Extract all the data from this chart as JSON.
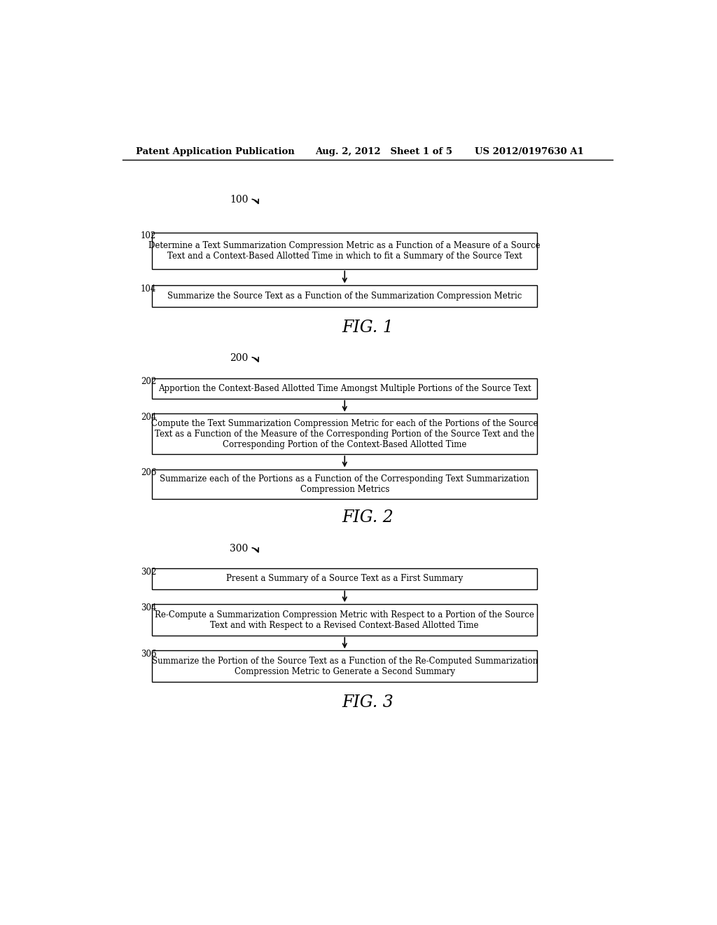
{
  "bg_color": "#ffffff",
  "header_left": "Patent Application Publication",
  "header_mid": "Aug. 2, 2012   Sheet 1 of 5",
  "header_right": "US 2012/0197630 A1",
  "fig1_label": "100",
  "fig1_caption": "FIG. 1",
  "fig1_steps": [
    {
      "id": "102",
      "lines": [
        "Determine a Text Summarization Compression Metric as a Function of a Measure of a Source",
        "Text and a Context-Based Allotted Time in which to fit a Summary of the Source Text"
      ]
    },
    {
      "id": "104",
      "lines": [
        "Summarize the Source Text as a Function of the Summarization Compression Metric"
      ]
    }
  ],
  "fig2_label": "200",
  "fig2_caption": "FIG. 2",
  "fig2_steps": [
    {
      "id": "202",
      "lines": [
        "Apportion the Context-Based Allotted Time Amongst Multiple Portions of the Source Text"
      ]
    },
    {
      "id": "204",
      "lines": [
        "Compute the Text Summarization Compression Metric for each of the Portions of the Source",
        "Text as a Function of the Measure of the Corresponding Portion of the Source Text and the",
        "Corresponding Portion of the Context-Based Allotted Time"
      ]
    },
    {
      "id": "206",
      "lines": [
        "Summarize each of the Portions as a Function of the Corresponding Text Summarization",
        "Compression Metrics"
      ]
    }
  ],
  "fig3_label": "300",
  "fig3_caption": "FIG. 3",
  "fig3_steps": [
    {
      "id": "302",
      "lines": [
        "Present a Summary of a Source Text as a First Summary"
      ]
    },
    {
      "id": "304",
      "lines": [
        "Re-Compute a Summarization Compression Metric with Respect to a Portion of the Source",
        "Text and with Respect to a Revised Context-Based Allotted Time"
      ]
    },
    {
      "id": "306",
      "lines": [
        "Summarize the Portion of the Source Text as a Function of the Re-Computed Summarization",
        "Compression Metric to Generate a Second Summary"
      ]
    }
  ]
}
